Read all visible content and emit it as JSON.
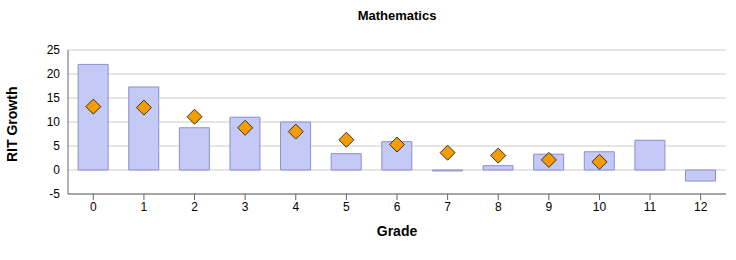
{
  "chart_data": {
    "type": "bar",
    "title": "Mathematics",
    "x_label": "Grade",
    "y_label": "RIT Growth",
    "categories": [
      "0",
      "1",
      "2",
      "3",
      "4",
      "5",
      "6",
      "7",
      "8",
      "9",
      "10",
      "11",
      "12"
    ],
    "series": [
      {
        "type": "bar",
        "color": "#c5c9f5",
        "values": [
          22,
          17.3,
          8.8,
          11,
          10,
          3.4,
          5.9,
          -0.2,
          0.9,
          3.3,
          3.8,
          6.2,
          -2.3
        ]
      },
      {
        "type": "scatter",
        "color": "#f59c00",
        "marker": "diamond",
        "values": [
          13.2,
          13,
          11.1,
          8.8,
          8,
          6.3,
          5.3,
          3.6,
          3,
          2.1,
          1.7,
          null,
          null
        ]
      }
    ],
    "ylim": [
      -5,
      25
    ],
    "yticks": [
      -5,
      0,
      5,
      10,
      15,
      20,
      25
    ],
    "grid": true
  }
}
